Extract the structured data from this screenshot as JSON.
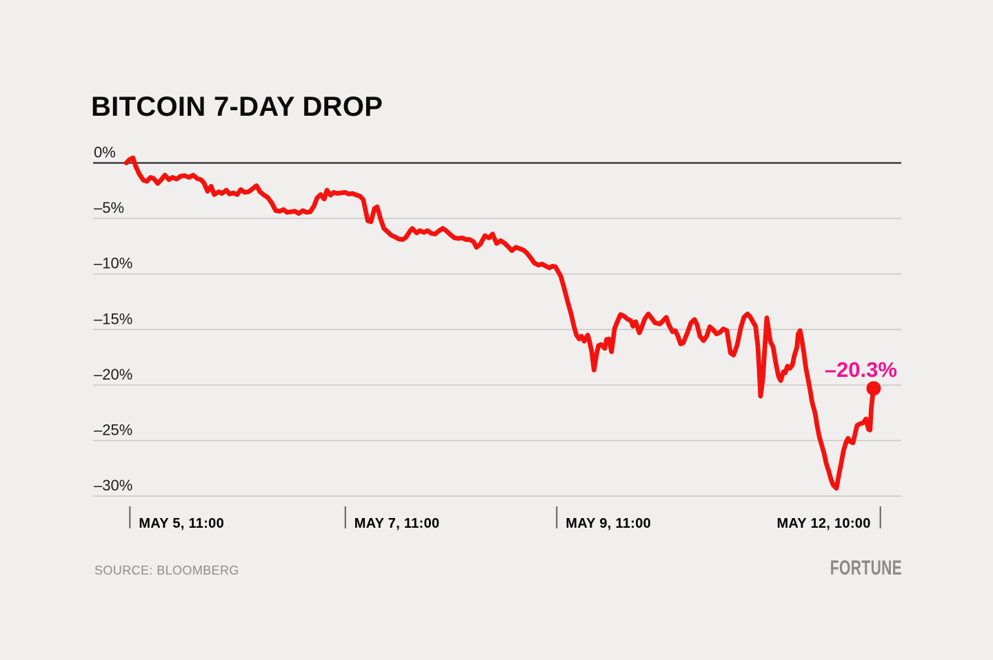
{
  "colors": {
    "background": "#f0efed",
    "line_red": "#f3130e",
    "annotation_pink": "#f0128f",
    "gridline": "#c8c8c6",
    "zero_line": "#2a2a2a",
    "tick_mark": "#5f5f5f",
    "title_text": "#0b0b0b",
    "muted_text": "#8d8d8d"
  },
  "footer": {
    "source": "SOURCE: BLOOMBERG",
    "brand": "FORTUNE"
  },
  "chart_data": {
    "type": "line",
    "title": "BITCOIN 7-DAY DROP",
    "ylabel": "",
    "xlabel": "",
    "grid": "horizontal",
    "legend": "none",
    "ylim": [
      -30,
      0
    ],
    "y_ticks": [
      0,
      -5,
      -10,
      -15,
      -20,
      -25,
      -30
    ],
    "y_tick_labels": [
      "0%",
      "–5%",
      "–10%",
      "–15%",
      "–20%",
      "–25%",
      "–30%"
    ],
    "x_unit": "hours_from_first_reading",
    "x_ticks": [
      {
        "hours": 0.9,
        "label": "MAY 5, 11:00",
        "label_side": "right"
      },
      {
        "hours": 48.9,
        "label": "MAY 7, 11:00",
        "label_side": "right"
      },
      {
        "hours": 96.0,
        "label": "MAY 9, 11:00",
        "label_side": "right"
      },
      {
        "hours": 168.1,
        "label": "MAY 12, 10:00",
        "label_side": "left"
      }
    ],
    "annotation": {
      "text": "–20.3%",
      "value": -20.3,
      "color": "#f0128f"
    },
    "series": [
      {
        "name": "Bitcoin 7-day % change",
        "color": "#f3130e",
        "end_dot": true,
        "points": [
          [
            0.1,
            0
          ],
          [
            0.8,
            0.3
          ],
          [
            1.6,
            0.45
          ],
          [
            2.2,
            -0.3
          ],
          [
            3,
            -1
          ],
          [
            3.9,
            -1.55
          ],
          [
            4.7,
            -1.65
          ],
          [
            5.5,
            -1.3
          ],
          [
            6.2,
            -1.4
          ],
          [
            7.1,
            -1.85
          ],
          [
            7.9,
            -1.5
          ],
          [
            8.7,
            -1.1
          ],
          [
            9.6,
            -1.5
          ],
          [
            10.4,
            -1.3
          ],
          [
            11.3,
            -1.45
          ],
          [
            12.2,
            -1.2
          ],
          [
            13.1,
            -1.15
          ],
          [
            14.1,
            -1.3
          ],
          [
            15,
            -1.1
          ],
          [
            15.9,
            -1.4
          ],
          [
            16.7,
            -1.5
          ],
          [
            17.4,
            -1.8
          ],
          [
            18.2,
            -2.55
          ],
          [
            19,
            -2.1
          ],
          [
            19.7,
            -2.85
          ],
          [
            20.7,
            -2.6
          ],
          [
            21.4,
            -2.75
          ],
          [
            22.4,
            -2.45
          ],
          [
            23.1,
            -2.8
          ],
          [
            23.9,
            -2.7
          ],
          [
            24.8,
            -2.85
          ],
          [
            25.6,
            -2.4
          ],
          [
            26.5,
            -2.65
          ],
          [
            27.3,
            -2.6
          ],
          [
            28,
            -2.4
          ],
          [
            29.1,
            -2.05
          ],
          [
            29.9,
            -2.6
          ],
          [
            30.8,
            -2.9
          ],
          [
            31.6,
            -3.1
          ],
          [
            32.5,
            -3.6
          ],
          [
            33.4,
            -4.3
          ],
          [
            34.3,
            -4.35
          ],
          [
            35.1,
            -4.2
          ],
          [
            35.9,
            -4.45
          ],
          [
            36.8,
            -4.4
          ],
          [
            37.7,
            -4.35
          ],
          [
            38.5,
            -4.55
          ],
          [
            39.4,
            -4.3
          ],
          [
            40.3,
            -4.45
          ],
          [
            41.1,
            -4.4
          ],
          [
            41.9,
            -3.9
          ],
          [
            42.6,
            -3.15
          ],
          [
            43.4,
            -2.85
          ],
          [
            44.2,
            -3.25
          ],
          [
            44.8,
            -2.45
          ],
          [
            45.6,
            -2.9
          ],
          [
            46.3,
            -2.65
          ],
          [
            47.1,
            -2.75
          ],
          [
            48,
            -2.7
          ],
          [
            48.8,
            -2.65
          ],
          [
            49.7,
            -2.8
          ],
          [
            50.5,
            -2.75
          ],
          [
            51.4,
            -2.9
          ],
          [
            52.2,
            -3
          ],
          [
            52.9,
            -3.3
          ],
          [
            53.9,
            -5.2
          ],
          [
            54.6,
            -5.3
          ],
          [
            55.4,
            -4.1
          ],
          [
            56,
            -3.95
          ],
          [
            56.8,
            -5.1
          ],
          [
            57.5,
            -5.9
          ],
          [
            58.3,
            -6.2
          ],
          [
            59.1,
            -6.5
          ],
          [
            59.9,
            -6.65
          ],
          [
            60.8,
            -6.85
          ],
          [
            61.7,
            -6.9
          ],
          [
            62.4,
            -6.7
          ],
          [
            63.2,
            -6.2
          ],
          [
            63.8,
            -5.9
          ],
          [
            64.8,
            -6.3
          ],
          [
            65.5,
            -6.1
          ],
          [
            66.4,
            -6.25
          ],
          [
            67.2,
            -6.1
          ],
          [
            68.1,
            -6.35
          ],
          [
            68.9,
            -6.4
          ],
          [
            69.8,
            -6.1
          ],
          [
            70.6,
            -5.9
          ],
          [
            71.5,
            -6.15
          ],
          [
            72.3,
            -6.45
          ],
          [
            73.2,
            -6.75
          ],
          [
            74.1,
            -6.8
          ],
          [
            74.9,
            -6.75
          ],
          [
            75.8,
            -6.9
          ],
          [
            76.6,
            -6.9
          ],
          [
            77.5,
            -7.1
          ],
          [
            78.1,
            -7.6
          ],
          [
            79,
            -7.3
          ],
          [
            80,
            -6.55
          ],
          [
            80.9,
            -6.75
          ],
          [
            81.7,
            -6.4
          ],
          [
            82.6,
            -7.25
          ],
          [
            83.5,
            -7
          ],
          [
            84.3,
            -7.2
          ],
          [
            85.2,
            -7.55
          ],
          [
            86,
            -7.9
          ],
          [
            86.9,
            -7.6
          ],
          [
            87.6,
            -7.7
          ],
          [
            88.6,
            -7.85
          ],
          [
            89.3,
            -8.1
          ],
          [
            90.1,
            -8.5
          ],
          [
            91,
            -9
          ],
          [
            91.9,
            -9.2
          ],
          [
            92.7,
            -9.1
          ],
          [
            93.6,
            -9.3
          ],
          [
            94.4,
            -9.45
          ],
          [
            95,
            -9.3
          ],
          [
            95.7,
            -9.35
          ],
          [
            96.2,
            -9.7
          ],
          [
            96.9,
            -10.2
          ],
          [
            97.6,
            -11.2
          ],
          [
            98.4,
            -12.45
          ],
          [
            99.2,
            -13.6
          ],
          [
            99.9,
            -14.8
          ],
          [
            100.4,
            -15.5
          ],
          [
            101,
            -15.85
          ],
          [
            101.5,
            -15.6
          ],
          [
            102.1,
            -16.05
          ],
          [
            102.9,
            -15.5
          ],
          [
            103.3,
            -16.1
          ],
          [
            103.8,
            -17
          ],
          [
            104.3,
            -18.65
          ],
          [
            104.9,
            -17.15
          ],
          [
            105.3,
            -16.45
          ],
          [
            105.9,
            -16.35
          ],
          [
            106.7,
            -16.7
          ],
          [
            107.1,
            -15.9
          ],
          [
            107.6,
            -15.85
          ],
          [
            108.2,
            -17
          ],
          [
            108.9,
            -14.9
          ],
          [
            109.5,
            -14.3
          ],
          [
            110.2,
            -13.65
          ],
          [
            111,
            -13.8
          ],
          [
            111.9,
            -14.1
          ],
          [
            112.5,
            -14.2
          ],
          [
            113,
            -14.7
          ],
          [
            113.6,
            -14.3
          ],
          [
            114.4,
            -15.3
          ],
          [
            114.8,
            -14.95
          ],
          [
            115.6,
            -14.05
          ],
          [
            116.4,
            -13.6
          ],
          [
            117.1,
            -13.95
          ],
          [
            117.9,
            -14.4
          ],
          [
            119,
            -14.5
          ],
          [
            119.7,
            -14.2
          ],
          [
            120.4,
            -13.9
          ],
          [
            121,
            -14.6
          ],
          [
            121.8,
            -15.2
          ],
          [
            122.4,
            -15.1
          ],
          [
            123,
            -15.6
          ],
          [
            123.6,
            -16.3
          ],
          [
            124.2,
            -16.2
          ],
          [
            125.1,
            -15.3
          ],
          [
            125.9,
            -14.4
          ],
          [
            126.7,
            -14.1
          ],
          [
            127.3,
            -14.6
          ],
          [
            127.9,
            -15.6
          ],
          [
            128.7,
            -16
          ],
          [
            129.4,
            -15.6
          ],
          [
            130.1,
            -14.75
          ],
          [
            130.8,
            -15
          ],
          [
            131.6,
            -15.4
          ],
          [
            132.4,
            -15.25
          ],
          [
            133.1,
            -14.95
          ],
          [
            133.9,
            -15.1
          ],
          [
            134.7,
            -17.1
          ],
          [
            135.4,
            -17.3
          ],
          [
            136.2,
            -16.4
          ],
          [
            137,
            -14.85
          ],
          [
            137.7,
            -13.9
          ],
          [
            138.5,
            -13.6
          ],
          [
            139.1,
            -13.85
          ],
          [
            139.7,
            -14.3
          ],
          [
            140.3,
            -14.7
          ],
          [
            140.8,
            -16.5
          ],
          [
            141.1,
            -18.5
          ],
          [
            141.4,
            -21
          ],
          [
            141.9,
            -19.5
          ],
          [
            142.3,
            -17
          ],
          [
            142.8,
            -13.95
          ],
          [
            143.6,
            -16.1
          ],
          [
            144.2,
            -16.55
          ],
          [
            144.8,
            -18
          ],
          [
            145.4,
            -19.2
          ],
          [
            145.9,
            -19.6
          ],
          [
            146.5,
            -18.8
          ],
          [
            146.9,
            -18.9
          ],
          [
            147.4,
            -18.3
          ],
          [
            147.9,
            -18.5
          ],
          [
            148.5,
            -18.2
          ],
          [
            148.9,
            -17.4
          ],
          [
            149.5,
            -16.6
          ],
          [
            149.8,
            -15.4
          ],
          [
            150.2,
            -15.1
          ],
          [
            150.6,
            -15.9
          ],
          [
            151.1,
            -17.2
          ],
          [
            151.5,
            -18.45
          ],
          [
            152,
            -19.5
          ],
          [
            152.5,
            -20.55
          ],
          [
            152.9,
            -21.55
          ],
          [
            153.6,
            -22.6
          ],
          [
            154,
            -23.65
          ],
          [
            154.5,
            -24.65
          ],
          [
            155.1,
            -25.5
          ],
          [
            155.6,
            -26.2
          ],
          [
            156,
            -27
          ],
          [
            156.6,
            -27.75
          ],
          [
            157.1,
            -28.5
          ],
          [
            157.6,
            -29
          ],
          [
            158.3,
            -29.3
          ],
          [
            158.9,
            -28
          ],
          [
            159.4,
            -27
          ],
          [
            159.9,
            -25.9
          ],
          [
            160.5,
            -25.1
          ],
          [
            160.9,
            -24.8
          ],
          [
            161.4,
            -25.1
          ],
          [
            162,
            -25.2
          ],
          [
            162.5,
            -24.35
          ],
          [
            162.9,
            -23.65
          ],
          [
            163.5,
            -23.5
          ],
          [
            164.3,
            -23.4
          ],
          [
            164.9,
            -23.05
          ],
          [
            165.5,
            -24
          ],
          [
            165.8,
            -24.05
          ],
          [
            166.1,
            -22
          ],
          [
            166.4,
            -20.9
          ],
          [
            166.6,
            -20.3
          ]
        ]
      }
    ]
  }
}
